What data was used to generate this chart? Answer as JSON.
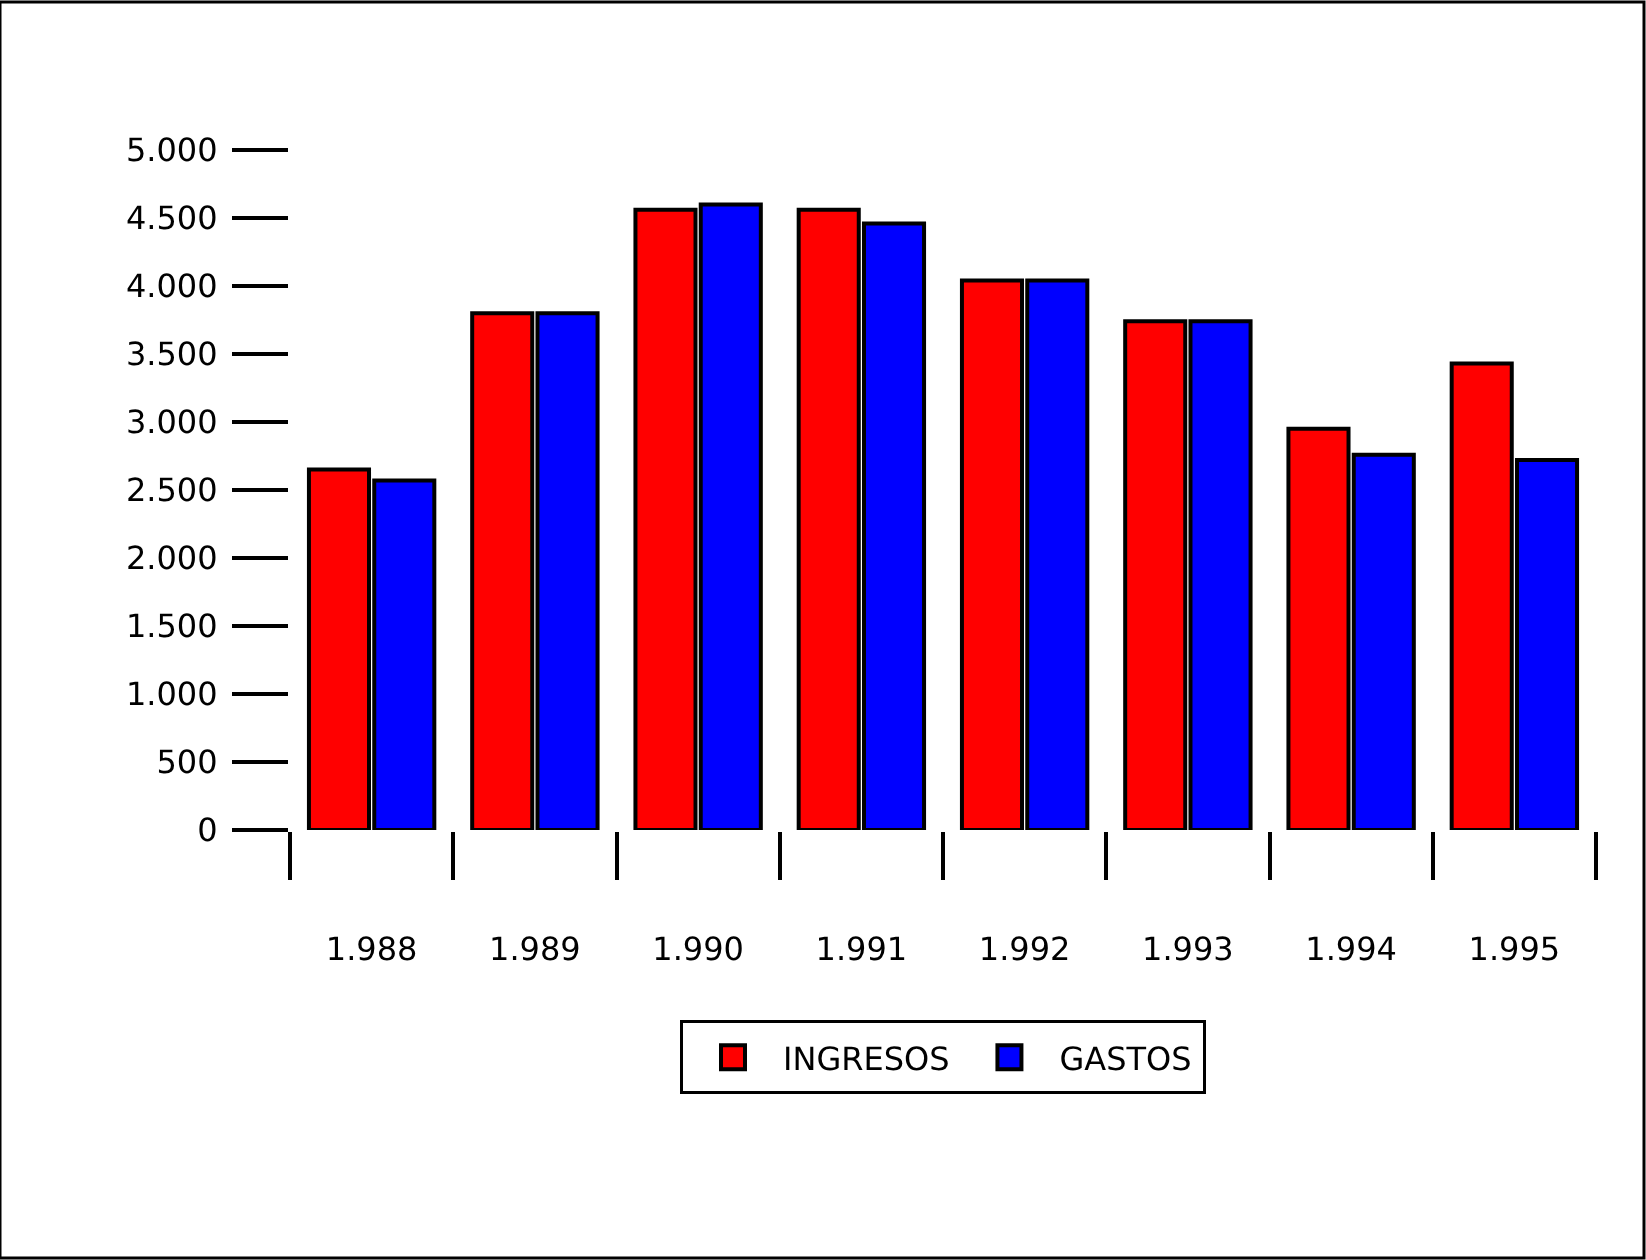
{
  "chart_data": {
    "type": "bar",
    "categories": [
      "1.988",
      "1.989",
      "1.990",
      "1.991",
      "1.992",
      "1.993",
      "1.994",
      "1.995"
    ],
    "series": [
      {
        "name": "INGRESOS",
        "color": "#ff0000",
        "values": [
          2650,
          3800,
          4560,
          4560,
          4040,
          3740,
          2950,
          3430
        ]
      },
      {
        "name": "GASTOS",
        "color": "#0000ff",
        "values": [
          2570,
          3800,
          4600,
          4460,
          4040,
          3740,
          2760,
          2720
        ]
      }
    ],
    "ylim": [
      0,
      5000
    ],
    "yticks": [
      {
        "value": 0,
        "label": "0"
      },
      {
        "value": 500,
        "label": "500"
      },
      {
        "value": 1000,
        "label": "1.000"
      },
      {
        "value": 1500,
        "label": "1.500"
      },
      {
        "value": 2000,
        "label": "2.000"
      },
      {
        "value": 2500,
        "label": "2.500"
      },
      {
        "value": 3000,
        "label": "3.000"
      },
      {
        "value": 3500,
        "label": "3.500"
      },
      {
        "value": 4000,
        "label": "4.000"
      },
      {
        "value": 4500,
        "label": "4.500"
      },
      {
        "value": 5000,
        "label": "5.000"
      }
    ],
    "grid": false,
    "legend": "bottom"
  }
}
